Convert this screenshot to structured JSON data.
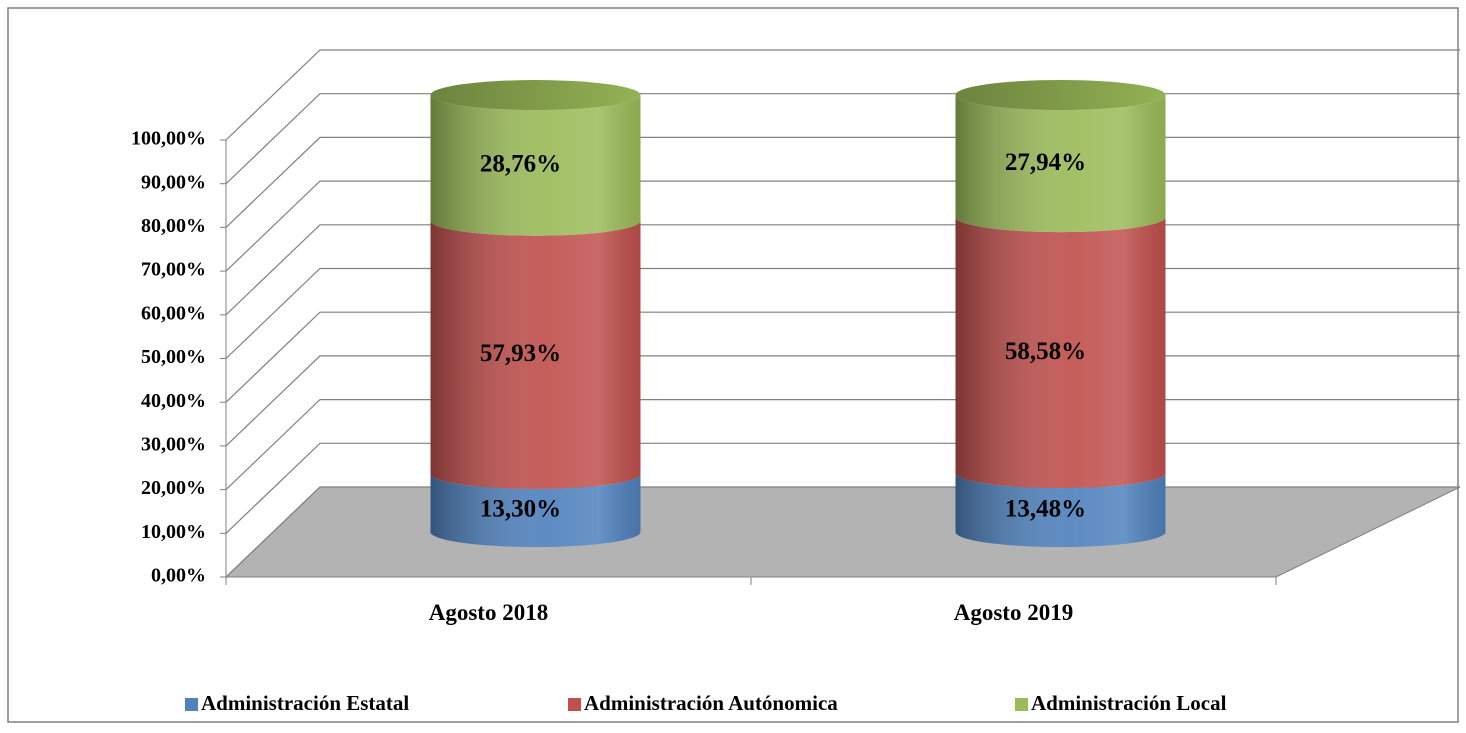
{
  "chart_data": {
    "type": "bar3d-cylinder-stacked",
    "categories": [
      "Agosto 2018",
      "Agosto 2019"
    ],
    "series": [
      {
        "name": "Administración Estatal",
        "color": "#4f81bd",
        "values": [
          13.3,
          13.48
        ],
        "value_labels": [
          "13,30%",
          "13,48%"
        ]
      },
      {
        "name": "Administración Autónomica",
        "color": "#c0504d",
        "values": [
          57.93,
          58.58
        ],
        "value_labels": [
          "57,93%",
          "58,58%"
        ]
      },
      {
        "name": "Administración Local",
        "color": "#9bbb59",
        "values": [
          28.76,
          27.94
        ],
        "value_labels": [
          "28,76%",
          "27,94%"
        ]
      }
    ],
    "ylim": [
      0,
      100
    ],
    "yticks": [
      {
        "value": 0,
        "label": "0,00%"
      },
      {
        "value": 10,
        "label": "10,00%"
      },
      {
        "value": 20,
        "label": "20,00%"
      },
      {
        "value": 30,
        "label": "30,00%"
      },
      {
        "value": 40,
        "label": "40,00%"
      },
      {
        "value": 50,
        "label": "50,00%"
      },
      {
        "value": 60,
        "label": "60,00%"
      },
      {
        "value": 70,
        "label": "70,00%"
      },
      {
        "value": 80,
        "label": "80,00%"
      },
      {
        "value": 90,
        "label": "90,00%"
      },
      {
        "value": 100,
        "label": "100,00%"
      }
    ],
    "grid": true,
    "legend": "bottom"
  }
}
